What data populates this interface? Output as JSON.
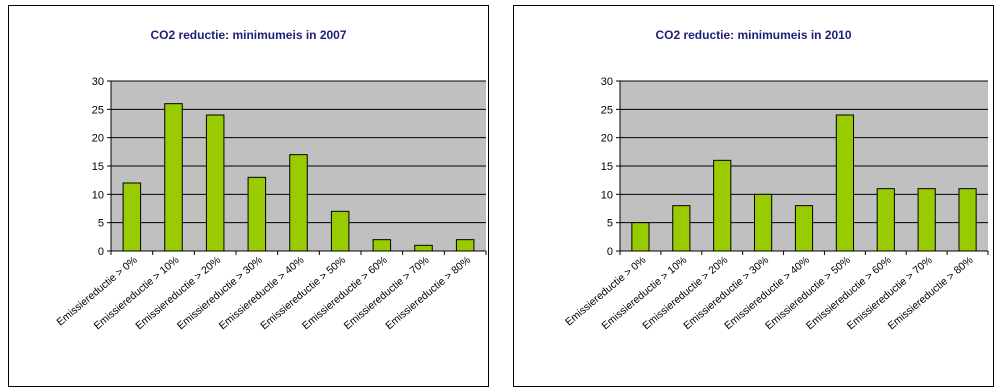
{
  "chart_data": [
    {
      "type": "bar",
      "title": "CO2 reductie: minimumeis in 2007",
      "categories": [
        "Emissiereductie > 0%",
        "Emissiereductie > 10%",
        "Emissiereductie > 20%",
        "Emissiereductie > 30%",
        "Emissiereductie > 40%",
        "Emissiereductie > 50%",
        "Emissiereductie > 60%",
        "Emissiereductie > 70%",
        "Emissiereductie > 80%"
      ],
      "values": [
        12,
        26,
        24,
        13,
        17,
        7,
        2,
        1,
        2
      ],
      "yticks": [
        "0",
        "5",
        "10",
        "15",
        "20",
        "25",
        "30"
      ],
      "ylim": [
        0,
        30
      ],
      "grid": true,
      "legend": "none",
      "colors": {
        "bar": "#99cc00",
        "plot_bg": "#c0c0c0",
        "title": "#1f1f7a"
      }
    },
    {
      "type": "bar",
      "title": "CO2 reductie: minimumeis in 2010",
      "categories": [
        "Emissiereductie > 0%",
        "Emissiereductie > 10%",
        "Emissiereductie > 20%",
        "Emissiereductie > 30%",
        "Emissiereductie > 40%",
        "Emissiereductie > 50%",
        "Emissiereductie > 60%",
        "Emissiereductie > 70%",
        "Emissiereductie > 80%"
      ],
      "values": [
        5,
        8,
        16,
        10,
        8,
        24,
        11,
        11,
        11
      ],
      "yticks": [
        "0",
        "5",
        "10",
        "15",
        "20",
        "25",
        "30"
      ],
      "ylim": [
        0,
        30
      ],
      "grid": true,
      "legend": "none",
      "colors": {
        "bar": "#99cc00",
        "plot_bg": "#c0c0c0",
        "title": "#1f1f7a"
      }
    }
  ]
}
